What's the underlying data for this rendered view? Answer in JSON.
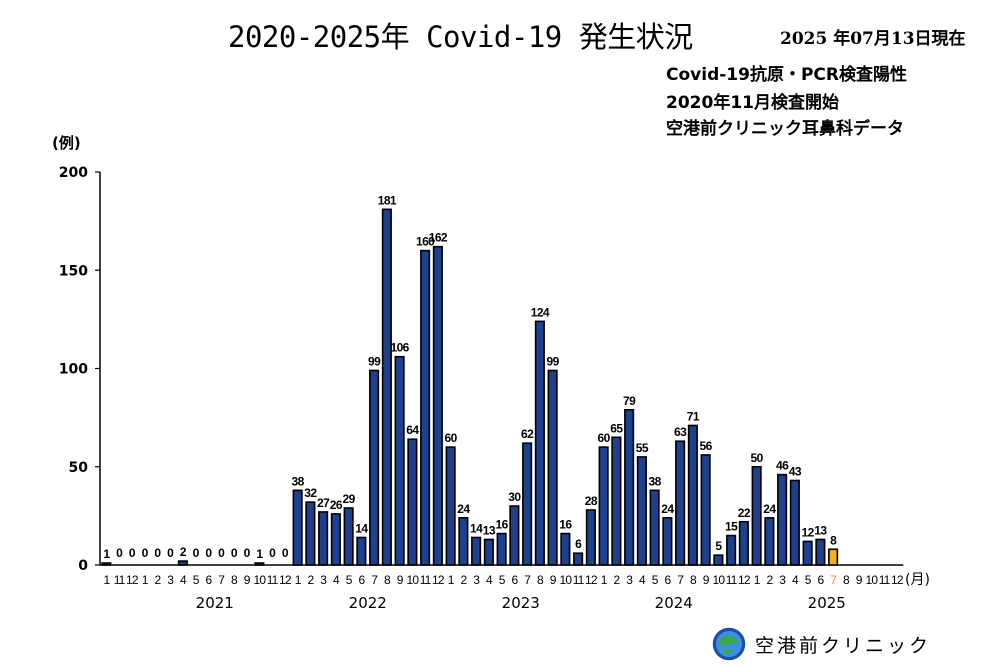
{
  "header": {
    "title": "2020-2025年 Covid-19 発生状況",
    "date": "2025 年07月13日現在",
    "notes": [
      "Covid-19抗原・PCR検査陽性",
      "2020年11月検査開始",
      "空港前クリニック耳鼻科データ"
    ]
  },
  "footer": {
    "clinic_name": "空港前クリニック",
    "logo_icon": "clinic-globe-logo"
  },
  "colors": {
    "bar": "#1f3f8f",
    "bar_current": "#f2b01e",
    "bar_border": "#000000"
  },
  "chart_data": {
    "type": "bar",
    "ylabel": "(例)",
    "xlabel": "(月)",
    "ylim": [
      0,
      200
    ],
    "yticks": [
      0,
      50,
      100,
      150,
      200
    ],
    "grid": false,
    "categories": [
      "1",
      "11",
      "12",
      "1",
      "2",
      "3",
      "4",
      "5",
      "6",
      "7",
      "8",
      "9",
      "10",
      "11",
      "12",
      "1",
      "2",
      "3",
      "4",
      "5",
      "6",
      "7",
      "8",
      "9",
      "10",
      "11",
      "12",
      "1",
      "2",
      "3",
      "4",
      "5",
      "6",
      "7",
      "8",
      "9",
      "10",
      "11",
      "12",
      "1",
      "2",
      "3",
      "4",
      "5",
      "6",
      "7",
      "8",
      "9",
      "10",
      "11",
      "12",
      "1",
      "2",
      "3",
      "4",
      "5",
      "6",
      "7",
      "8",
      "9",
      "10",
      "11",
      "12"
    ],
    "values": [
      1,
      0,
      0,
      0,
      0,
      0,
      2,
      0,
      0,
      0,
      0,
      0,
      1,
      0,
      0,
      38,
      32,
      27,
      26,
      29,
      14,
      99,
      181,
      106,
      64,
      160,
      162,
      60,
      24,
      14,
      13,
      16,
      30,
      62,
      124,
      99,
      16,
      6,
      28,
      60,
      65,
      79,
      55,
      38,
      24,
      63,
      71,
      56,
      5,
      15,
      22,
      50,
      24,
      46,
      43,
      12,
      13,
      8,
      null,
      null,
      null,
      null,
      null
    ],
    "value_labels": [
      "1",
      "0",
      "0",
      "0",
      "0",
      "0",
      "2",
      "0",
      "0",
      "0",
      "0",
      "0",
      "1",
      "0",
      "0",
      "38",
      "32",
      "27",
      "26",
      "29",
      "14",
      "99",
      "181",
      "106",
      "64",
      "160",
      "162",
      "60",
      "24",
      "14",
      "13",
      "16",
      "30",
      "62",
      "124",
      "99",
      "16",
      "6",
      "28",
      "60",
      "65",
      "79",
      "55",
      "38",
      "24",
      "63",
      "71",
      "56",
      "5",
      "15",
      "22",
      "50",
      "24",
      "46",
      "43",
      "12",
      "13",
      "8",
      "",
      "",
      "",
      "",
      ""
    ],
    "highlight_index": 57,
    "years": [
      {
        "label": "2021",
        "from": 3,
        "to": 14
      },
      {
        "label": "2022",
        "from": 15,
        "to": 26
      },
      {
        "label": "2023",
        "from": 27,
        "to": 38
      },
      {
        "label": "2024",
        "from": 39,
        "to": 50
      },
      {
        "label": "2025",
        "from": 51,
        "to": 62
      }
    ]
  }
}
